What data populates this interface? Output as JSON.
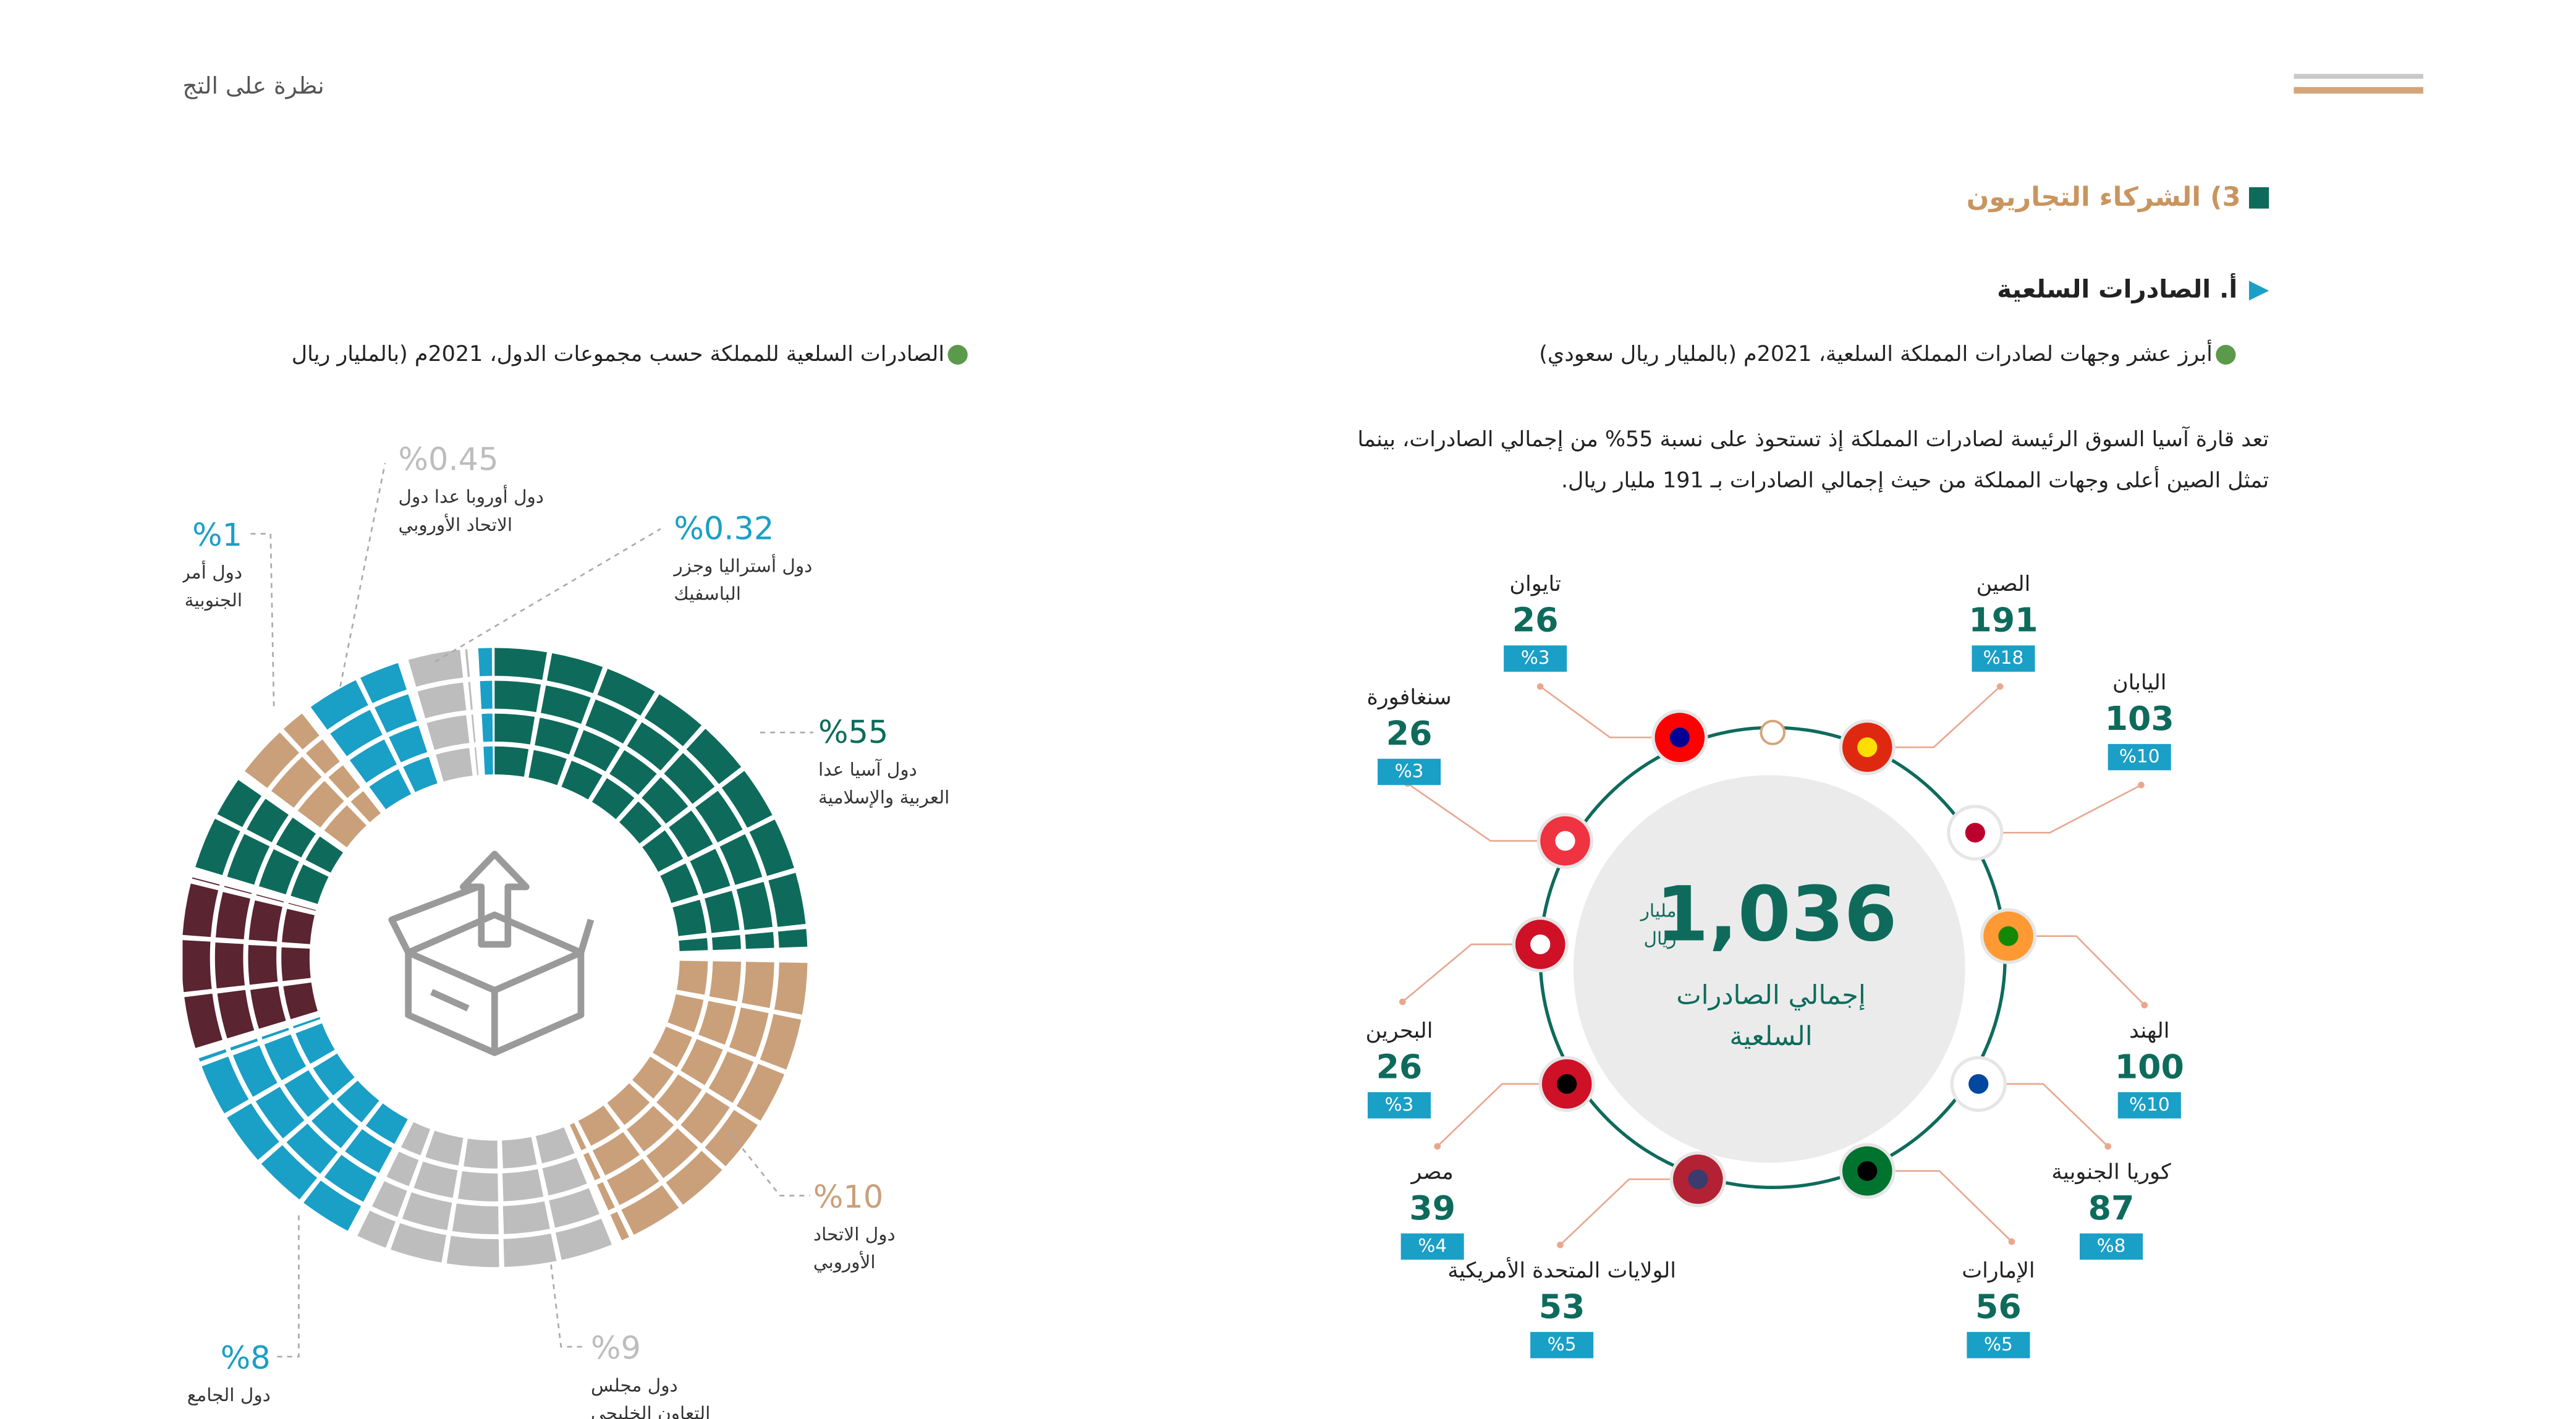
{
  "header": {
    "running_title": "نظرة على التج"
  },
  "section": {
    "title": "3) الشركاء التجاريون",
    "subtitle": "أ. الصادرات السلعية"
  },
  "right_figure": {
    "caption": "أبرز عشر وجهات لصادرات المملكة السلعية، 2021م (بالمليار ريال سعودي)",
    "paragraph": [
      "تعد قارة آسيا السوق الرئيسة لصادرات المملكة إذ تستحوذ على نسبة 55% من إجمالي الصادرات، بينما",
      "تمثل الصين أعلى وجهات المملكة من حيث إجمالي الصادرات بـ 191 مليار ريال."
    ],
    "total": {
      "value": "1,036",
      "unit": [
        "مليار",
        "ريال"
      ],
      "label": [
        "إجمالي الصادرات",
        "السلعية"
      ]
    },
    "countries": [
      {
        "name": "الصين",
        "value": "191",
        "share": "%18"
      },
      {
        "name": "اليابان",
        "value": "103",
        "share": "%10"
      },
      {
        "name": "الهند",
        "value": "100",
        "share": "%10"
      },
      {
        "name": "كوريا الجنوبية",
        "value": "87",
        "share": "%8"
      },
      {
        "name": "الإمارات",
        "value": "56",
        "share": "%5"
      },
      {
        "name": "الولايات المتحدة الأمريكية",
        "value": "53",
        "share": "%5"
      },
      {
        "name": "مصر",
        "value": "39",
        "share": "%4"
      },
      {
        "name": "البحرين",
        "value": "26",
        "share": "%3"
      },
      {
        "name": "سنغافورة",
        "value": "26",
        "share": "%3"
      },
      {
        "name": "تايوان",
        "value": "26",
        "share": "%3"
      }
    ]
  },
  "left_figure": {
    "caption": "الصادرات السلعية للمملكة حسب مجموعات الدول، 2021م (بالمليار ريال",
    "groups": [
      {
        "share": "%55",
        "label": [
          "دول آسيا عدا",
          "العربية والإسلامية"
        ]
      },
      {
        "share": "%10",
        "label": [
          "دول الاتحاد",
          "الأوروبي"
        ]
      },
      {
        "share": "%9",
        "label": [
          "دول مجلس",
          "التعاون الخليجي"
        ]
      },
      {
        "share": "%8",
        "label": [
          "دول الجامع"
        ]
      },
      {
        "share": "%1",
        "label": [
          "دول أمر",
          "الجنوبية"
        ]
      },
      {
        "share": "%0.45",
        "label": [
          "دول أوروبا عدا دول",
          "الاتحاد الأوروبي"
        ]
      },
      {
        "share": "%0.32",
        "label": [
          "دول أستراليا وجزر",
          "الباسفيك"
        ]
      }
    ]
  }
}
